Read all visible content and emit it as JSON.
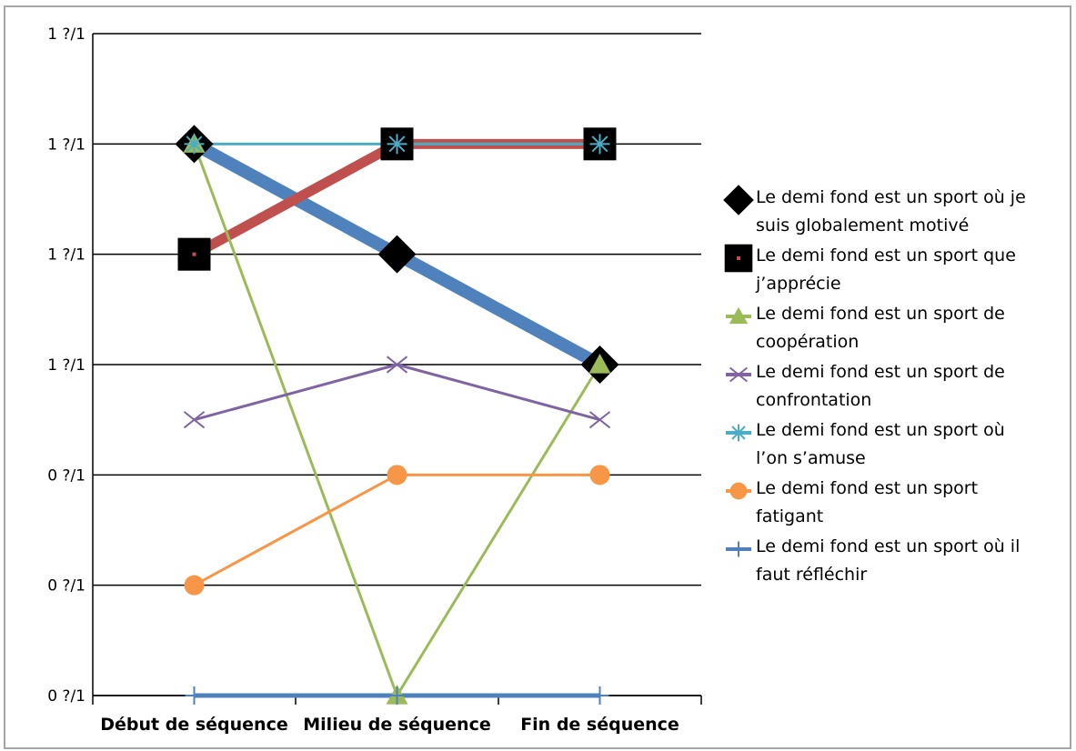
{
  "chart_data": {
    "type": "line",
    "categories": [
      "Début de séquence",
      "Milieu de séquence",
      "Fin de séquence"
    ],
    "y_tick_labels": [
      "0 ?/1",
      "0 ?/1",
      "0 ?/1",
      "1 ?/1",
      "1 ?/1",
      "1 ?/1",
      "1 ?/1"
    ],
    "ylim": [
      0,
      6
    ],
    "grid": true,
    "legend_position": "right",
    "series": [
      {
        "name": "Le demi fond est un sport où je suis globalement motivé",
        "legend_lines": [
          "Le demi fond est un sport où je",
          "suis globalement motivé"
        ],
        "values": [
          5,
          4,
          3
        ],
        "color": "#4f81bd",
        "marker": "diamond"
      },
      {
        "name": "Le demi fond est un sport que j’apprécie",
        "legend_lines": [
          "Le demi fond est un sport que",
          "j’apprécie"
        ],
        "values": [
          4,
          5,
          5
        ],
        "color": "#c0504d",
        "marker": "square"
      },
      {
        "name": "Le demi fond est un sport de coopération",
        "legend_lines": [
          "Le demi fond est un sport de",
          "coopération"
        ],
        "values": [
          5,
          0,
          3
        ],
        "color": "#9bbb59",
        "marker": "triangle"
      },
      {
        "name": "Le demi fond est un sport de confrontation",
        "legend_lines": [
          "Le demi fond est un sport de",
          "confrontation"
        ],
        "values": [
          2.5,
          3,
          2.5
        ],
        "color": "#8064a2",
        "marker": "x"
      },
      {
        "name": "Le demi fond est un sport où l’on s’amuse",
        "legend_lines": [
          "Le demi fond est un sport où",
          "l’on s’amuse"
        ],
        "values": [
          5,
          5,
          5
        ],
        "color": "#4bacc6",
        "marker": "star"
      },
      {
        "name": "Le demi fond est un sport fatigant",
        "legend_lines": [
          "Le demi fond est un sport",
          "fatigant"
        ],
        "values": [
          1,
          2,
          2
        ],
        "color": "#f79646",
        "marker": "circle"
      },
      {
        "name": "Le demi fond est un sport où il faut réfléchir",
        "legend_lines": [
          "Le demi fond est un sport où il",
          "faut réfléchir"
        ],
        "values": [
          0,
          0,
          0
        ],
        "color": "#4f81bd",
        "marker": "plus"
      }
    ]
  }
}
